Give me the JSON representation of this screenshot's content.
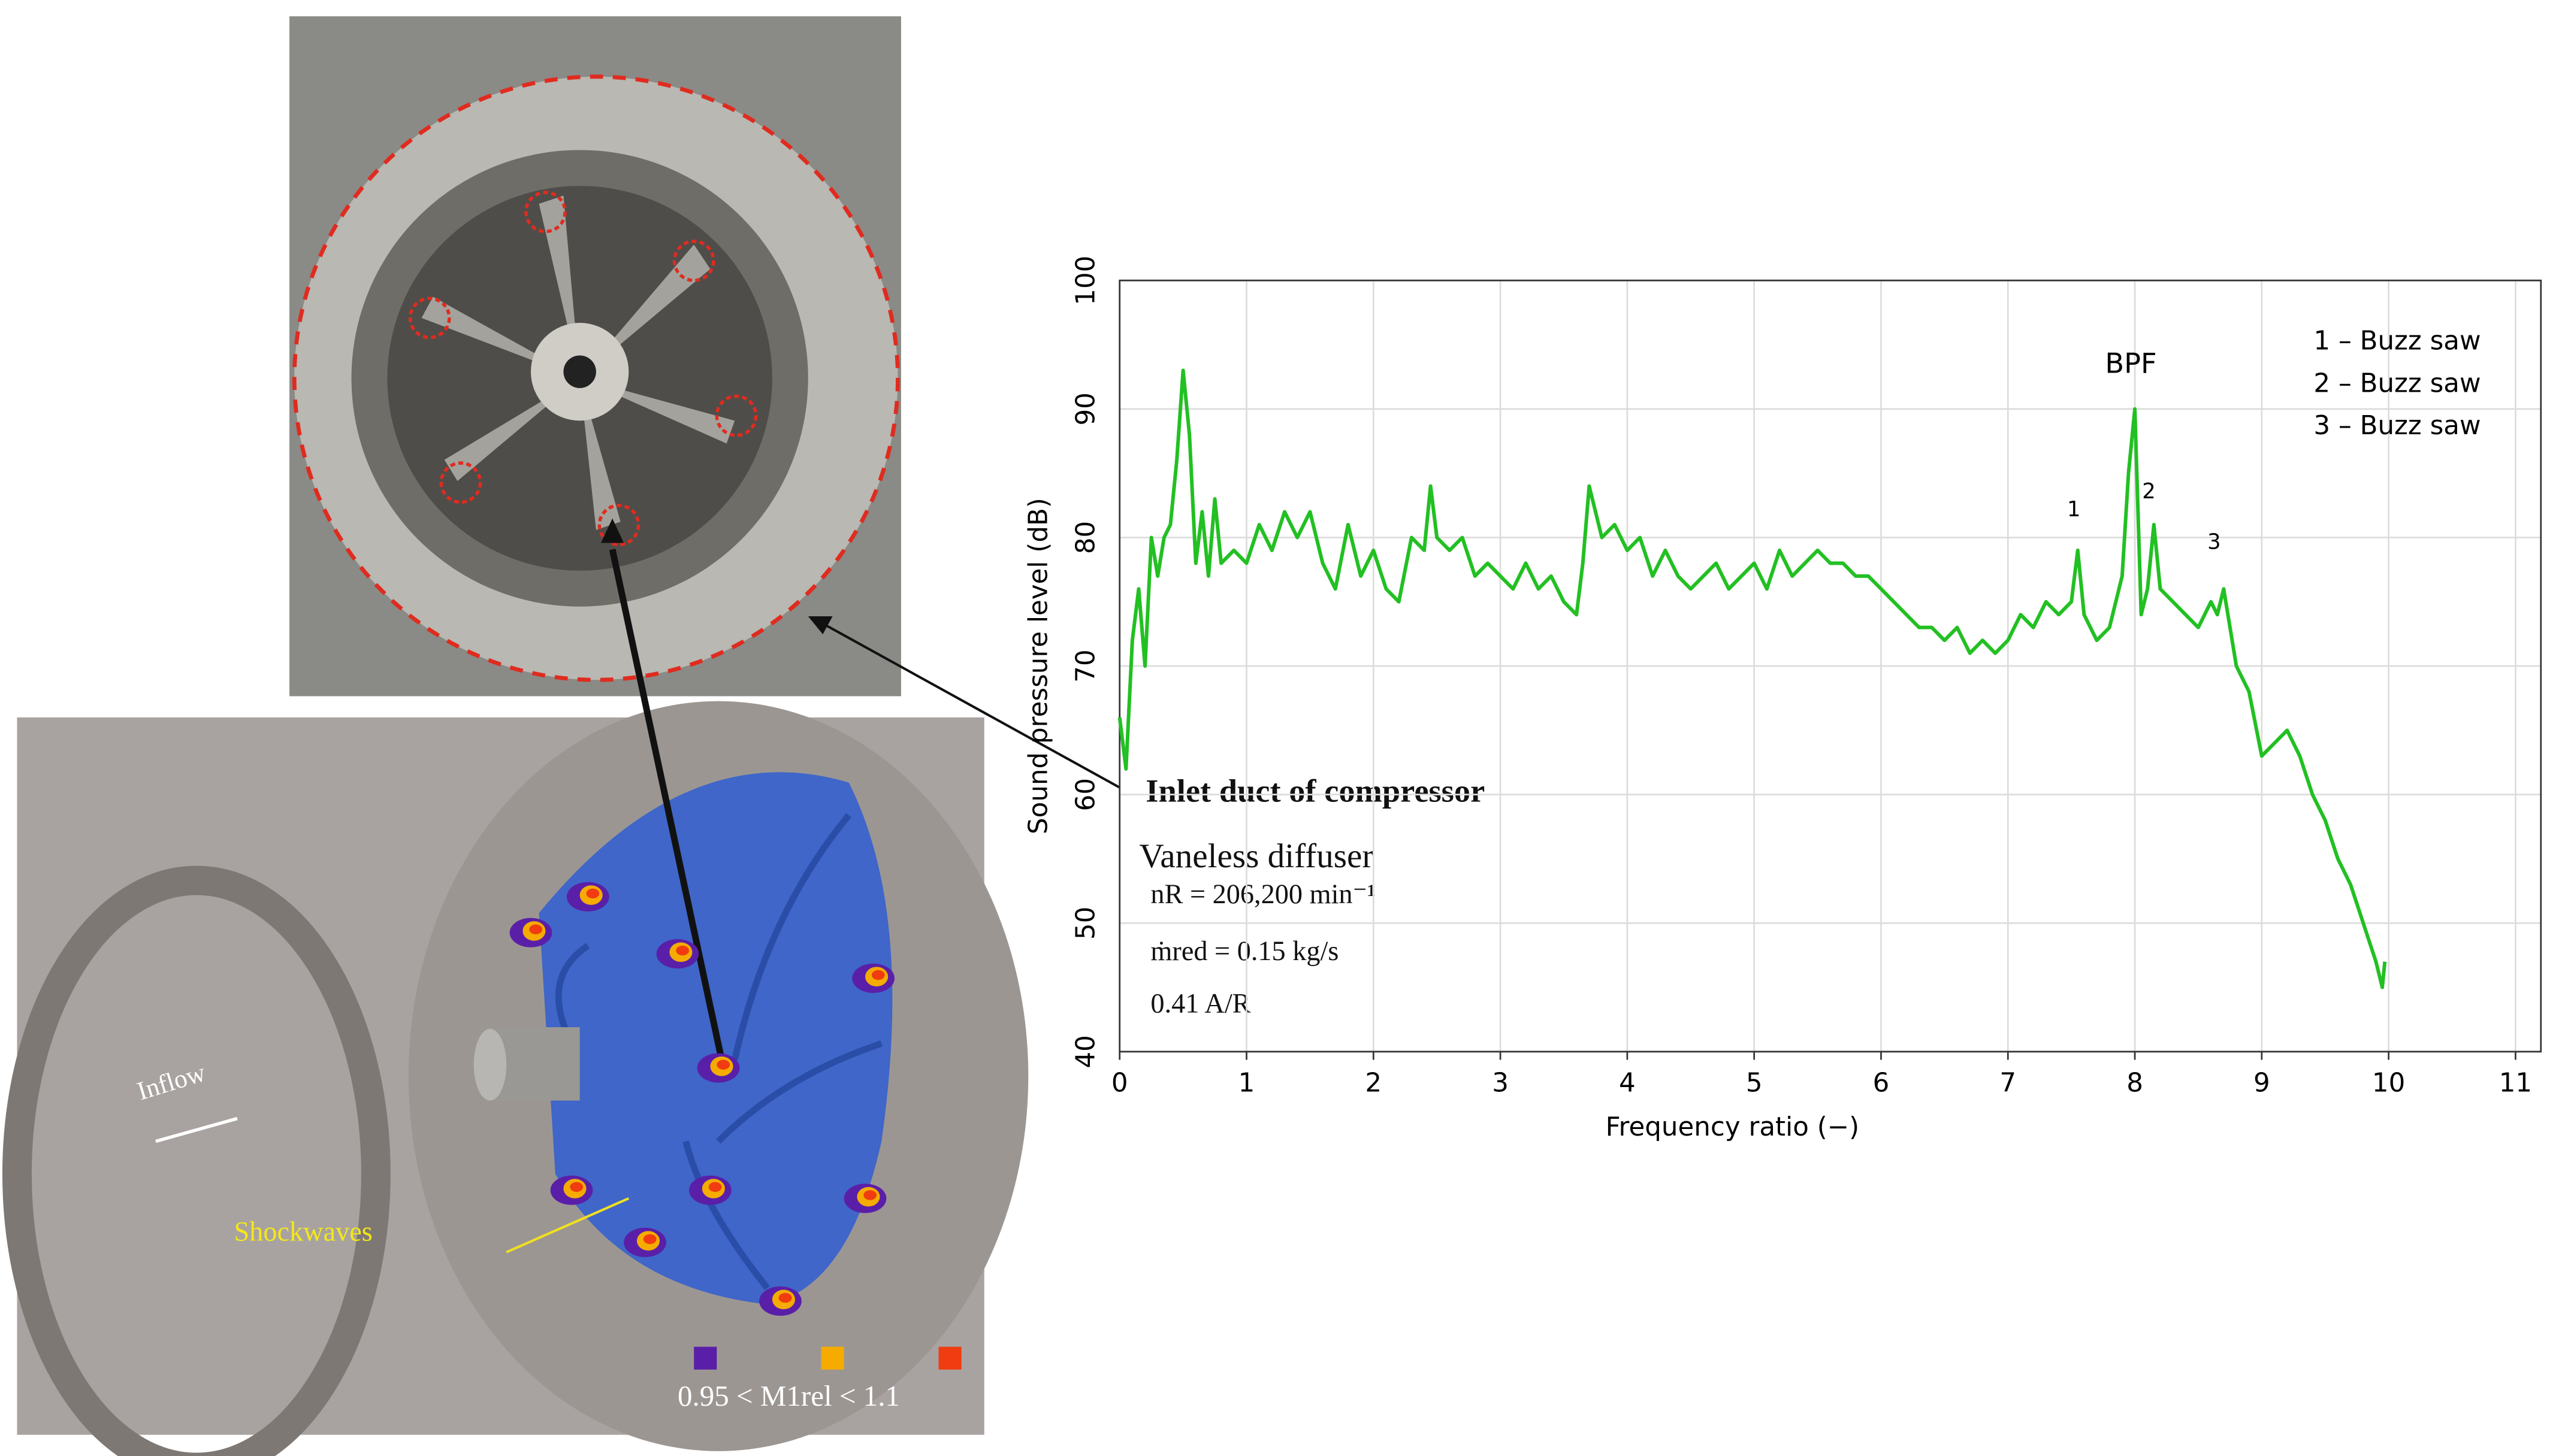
{
  "chart_data": {
    "type": "line",
    "x_label": "Frequency ratio (−)",
    "y_label": "Sound pressure level  (dB)",
    "x": [
      0,
      0.05,
      0.1,
      0.15,
      0.2,
      0.25,
      0.3,
      0.35,
      0.4,
      0.45,
      0.5,
      0.55,
      0.6,
      0.65,
      0.7,
      0.75,
      0.8,
      0.9,
      1.0,
      1.1,
      1.2,
      1.3,
      1.4,
      1.5,
      1.6,
      1.7,
      1.8,
      1.9,
      2.0,
      2.1,
      2.2,
      2.3,
      2.4,
      2.45,
      2.5,
      2.6,
      2.7,
      2.8,
      2.9,
      3.0,
      3.1,
      3.2,
      3.3,
      3.4,
      3.5,
      3.6,
      3.65,
      3.7,
      3.8,
      3.9,
      4.0,
      4.1,
      4.2,
      4.3,
      4.4,
      4.5,
      4.6,
      4.7,
      4.8,
      4.9,
      5.0,
      5.1,
      5.2,
      5.3,
      5.4,
      5.5,
      5.6,
      5.7,
      5.8,
      5.9,
      6.0,
      6.1,
      6.2,
      6.3,
      6.4,
      6.5,
      6.6,
      6.7,
      6.8,
      6.9,
      7.0,
      7.1,
      7.2,
      7.3,
      7.4,
      7.5,
      7.55,
      7.6,
      7.7,
      7.8,
      7.9,
      7.95,
      8.0,
      8.05,
      8.1,
      8.15,
      8.2,
      8.3,
      8.4,
      8.5,
      8.6,
      8.65,
      8.7,
      8.8,
      8.9,
      9.0,
      9.1,
      9.2,
      9.3,
      9.4,
      9.5,
      9.6,
      9.7,
      9.8,
      9.9,
      9.95,
      9.97
    ],
    "values": [
      66,
      62,
      72,
      76,
      70,
      80,
      77,
      80,
      81,
      86,
      93,
      88,
      78,
      82,
      77,
      83,
      78,
      79,
      78,
      81,
      79,
      82,
      80,
      82,
      78,
      76,
      81,
      77,
      79,
      76,
      75,
      80,
      79,
      84,
      80,
      79,
      80,
      77,
      78,
      77,
      76,
      78,
      76,
      77,
      75,
      74,
      78,
      84,
      80,
      81,
      79,
      80,
      77,
      79,
      77,
      76,
      77,
      78,
      76,
      77,
      78,
      76,
      79,
      77,
      78,
      79,
      78,
      78,
      77,
      77,
      76,
      75,
      74,
      73,
      73,
      72,
      73,
      71,
      72,
      71,
      72,
      74,
      73,
      75,
      74,
      75,
      79,
      74,
      72,
      73,
      77,
      85,
      90,
      74,
      76,
      81,
      76,
      75,
      74,
      73,
      75,
      74,
      76,
      70,
      68,
      63,
      64,
      65,
      63,
      60,
      58,
      55,
      53,
      50,
      47,
      45,
      47
    ],
    "color": "#22c022",
    "xlim": [
      0,
      11.2
    ],
    "ylim": [
      40,
      100
    ],
    "xticks": [
      0,
      1,
      2,
      3,
      4,
      5,
      6,
      7,
      8,
      9,
      10,
      11
    ],
    "yticks": [
      40,
      50,
      60,
      70,
      80,
      90,
      100
    ],
    "grid": true,
    "peak_labels": [
      "BPF",
      "1",
      "2",
      "3"
    ],
    "notes": [
      "1 – Buzz saw",
      "2 – Buzz saw",
      "3 – Buzz saw"
    ]
  },
  "inset": {
    "title": "Inlet duct of compressor",
    "lines": [
      "Vaneless diffuser",
      "nR = 206,200 min⁻¹",
      "ṁred = 0.15 kg/s",
      "0.41 A/R"
    ]
  },
  "render": {
    "inflow": "Inflow",
    "shockwaves": "Shockwaves",
    "mach_range": "0.95 < M1rel < 1.1",
    "mach_colors": [
      "#5a1fa8",
      "#f5ab00",
      "#f03c10"
    ]
  }
}
